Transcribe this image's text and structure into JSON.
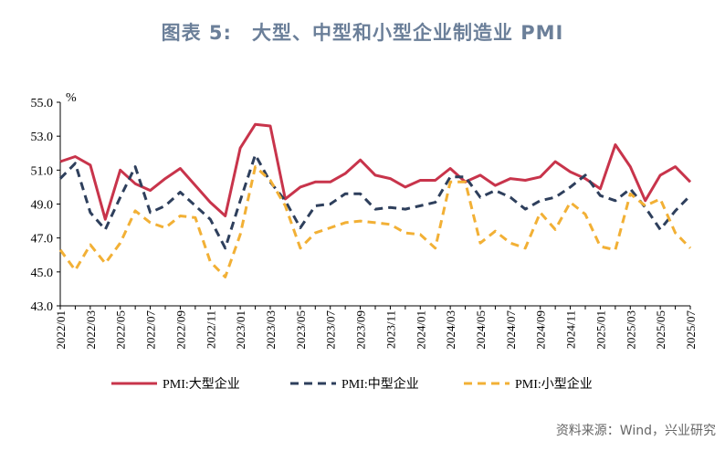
{
  "title": {
    "number": "图表 5:",
    "text": "大型、中型和小型企业制造业 PMI"
  },
  "source": "资料来源：Wind，兴业研究",
  "chart_data": {
    "type": "line",
    "ylabel": "%",
    "ylim": [
      43.0,
      55.0
    ],
    "yticks": [
      "43.0",
      "45.0",
      "47.0",
      "49.0",
      "51.0",
      "53.0",
      "55.0"
    ],
    "xtick_labels": [
      "2022/01",
      "2022/03",
      "2022/05",
      "2022/07",
      "2022/09",
      "2022/11",
      "2023/01",
      "2023/03",
      "2023/05",
      "2023/07",
      "2023/09",
      "2023/11",
      "2024/01",
      "2024/03",
      "2024/05",
      "2024/07",
      "2024/09",
      "2024/11",
      "2025/01",
      "2025/03",
      "2025/05",
      "2025/07"
    ],
    "x": [
      "2022/01",
      "2022/02",
      "2022/03",
      "2022/04",
      "2022/05",
      "2022/06",
      "2022/07",
      "2022/08",
      "2022/09",
      "2022/10",
      "2022/11",
      "2022/12",
      "2023/01",
      "2023/02",
      "2023/03",
      "2023/04",
      "2023/05",
      "2023/06",
      "2023/07",
      "2023/08",
      "2023/09",
      "2023/10",
      "2023/11",
      "2023/12",
      "2024/01",
      "2024/02",
      "2024/03",
      "2024/04",
      "2024/05",
      "2024/06",
      "2024/07",
      "2024/08",
      "2024/09",
      "2024/10",
      "2024/11",
      "2024/12",
      "2025/01",
      "2025/02",
      "2025/03",
      "2025/04",
      "2025/05",
      "2025/06",
      "2025/07"
    ],
    "series": [
      {
        "name": "PMI:大型企业",
        "color": "#c8344b",
        "style": "solid",
        "values": [
          51.5,
          51.8,
          51.3,
          48.1,
          51.0,
          50.2,
          49.8,
          50.5,
          51.1,
          50.1,
          49.1,
          48.3,
          52.3,
          53.7,
          53.6,
          49.3,
          50.0,
          50.3,
          50.3,
          50.8,
          51.6,
          50.7,
          50.5,
          50.0,
          50.4,
          50.4,
          51.1,
          50.3,
          50.7,
          50.1,
          50.5,
          50.4,
          50.6,
          51.5,
          50.9,
          50.5,
          49.9,
          52.5,
          51.2,
          49.2,
          50.7,
          51.2,
          50.3
        ]
      },
      {
        "name": "PMI:中型企业",
        "color": "#2e3f5c",
        "style": "dashed",
        "values": [
          50.5,
          51.4,
          48.5,
          47.5,
          49.4,
          51.2,
          48.5,
          48.9,
          49.7,
          48.9,
          48.1,
          46.4,
          49.2,
          51.9,
          50.3,
          49.2,
          47.6,
          48.9,
          49.0,
          49.6,
          49.6,
          48.7,
          48.8,
          48.7,
          48.9,
          49.1,
          50.6,
          50.6,
          49.4,
          49.8,
          49.4,
          48.7,
          49.2,
          49.4,
          50.0,
          50.7,
          49.5,
          49.2,
          49.9,
          48.8,
          47.5,
          48.6,
          49.5
        ]
      },
      {
        "name": "PMI:小型企业",
        "color": "#f2b035",
        "style": "dashed",
        "values": [
          46.3,
          45.1,
          46.6,
          45.5,
          46.7,
          48.6,
          47.9,
          47.6,
          48.3,
          48.2,
          45.6,
          44.7,
          47.2,
          51.2,
          50.4,
          48.9,
          46.4,
          47.3,
          47.6,
          47.9,
          48.0,
          47.9,
          47.8,
          47.3,
          47.2,
          46.4,
          50.3,
          50.3,
          46.7,
          47.4,
          46.7,
          46.4,
          48.5,
          47.5,
          49.1,
          48.4,
          46.5,
          46.3,
          49.6,
          48.9,
          49.3,
          47.3,
          46.4
        ]
      }
    ],
    "legend_position": "bottom",
    "grid": false
  }
}
